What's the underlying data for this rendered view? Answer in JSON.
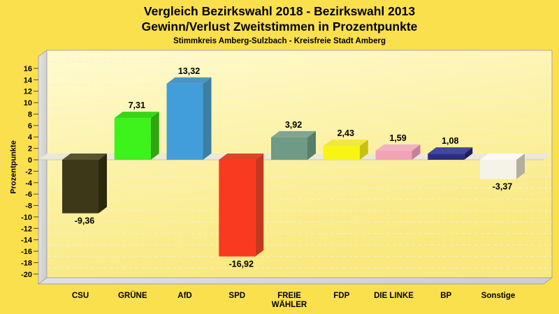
{
  "page": {
    "background": "#FBE04E"
  },
  "chart_data": {
    "type": "bar",
    "title": "Vergleich Bezirkswahl 2018 - Bezirkswahl 2013",
    "subtitle": "Gewinn/Verlust Zweitstimmen in Prozentpunkte",
    "caption": "Stimmkreis Amberg-Sulzbach - Kreisfreie Stadt Amberg",
    "ylabel": "Prozentpunkte",
    "ylim": [
      -20,
      16
    ],
    "ytick_step": 2,
    "yticks": [
      16,
      14,
      12,
      10,
      8,
      6,
      4,
      2,
      0,
      -2,
      -4,
      -6,
      -8,
      -10,
      -12,
      -14,
      -16,
      -18,
      -20
    ],
    "grid": "dashed",
    "legend": "none",
    "style": "3d-bars",
    "categories": [
      "CSU",
      "GRÜNE",
      "AfD",
      "SPD",
      "FREIE WÄHLER",
      "FDP",
      "DIE LINKE",
      "BP",
      "Sonstige"
    ],
    "category_lines": [
      [
        "CSU"
      ],
      [
        "GRÜNE"
      ],
      [
        "AfD"
      ],
      [
        "SPD"
      ],
      [
        "FREIE",
        "WÄHLER"
      ],
      [
        "FDP"
      ],
      [
        "DIE LINKE"
      ],
      [
        "BP"
      ],
      [
        "Sonstige"
      ]
    ],
    "values": [
      -9.36,
      7.31,
      13.32,
      -16.92,
      3.92,
      2.43,
      1.59,
      1.08,
      -3.37
    ],
    "value_labels": [
      "-9,36",
      "7,31",
      "13,32",
      "-16,92",
      "3,92",
      "2,43",
      "1,59",
      "1,08",
      "-3,37"
    ],
    "bar_colors": [
      {
        "front": "#3D3918",
        "top": "#585430",
        "side": "#2B280E"
      },
      {
        "front": "#3CF31B",
        "top": "#36D518",
        "side": "#2FA512"
      },
      {
        "front": "#429EDA",
        "top": "#4D94C4",
        "side": "#3C7FA3"
      },
      {
        "front": "#F93A20",
        "top": "#DE4426",
        "side": "#C23920"
      },
      {
        "front": "#6F9A86",
        "top": "#7FA591",
        "side": "#567E6B"
      },
      {
        "front": "#F8F512",
        "top": "#EEE93C",
        "side": "#C6C10F"
      },
      {
        "front": "#F3A3B8",
        "top": "#F0B2C2",
        "side": "#C5819B"
      },
      {
        "front": "#2B2D85",
        "top": "#45479C",
        "side": "#1D1F5E"
      },
      {
        "front": "#F5F3E7",
        "top": "#FBFAF4",
        "side": "#B3AF9E"
      }
    ],
    "colors": {
      "background": "#FBE04E",
      "plot_top": "#FFFBD0",
      "plot_bottom": "#F9E97E",
      "wall_light": "#E4E4E4",
      "wall_dark": "#CECECE",
      "wall_edge": "#A6A6A6",
      "zero_plane": "#ECE8D8",
      "zero_edge": "#CCC8B6",
      "gridline": "#F2EFDF",
      "text": "#000000"
    }
  }
}
